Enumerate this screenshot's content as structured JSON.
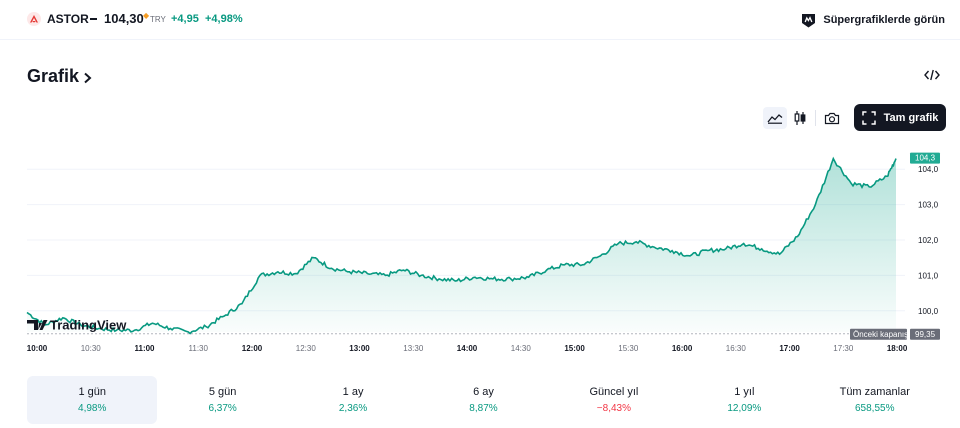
{
  "header": {
    "symbol": "ASTOR",
    "price": "104,30",
    "currency": "TRY",
    "change": "+4,95",
    "change_percent": "+4,98%",
    "supercharts_label": "Süpergrafiklerde görün"
  },
  "section": {
    "title": "Grafik"
  },
  "toolbar": {
    "full_chart_label": "Tam grafik",
    "chart_style_selected": "area"
  },
  "chart_data": {
    "type": "area",
    "x_ticks": [
      "10:00",
      "10:30",
      "11:00",
      "11:30",
      "12:00",
      "12:30",
      "13:00",
      "13:30",
      "14:00",
      "14:30",
      "15:00",
      "15:30",
      "16:00",
      "16:30",
      "17:00",
      "17:30",
      "18:00"
    ],
    "y_ticks": [
      "100,0",
      "101,0",
      "102,0",
      "103,0",
      "104,0"
    ],
    "ylim": [
      99.4,
      104.6
    ],
    "series": [
      {
        "x": [
          "10:00",
          "10:10",
          "10:20",
          "10:30",
          "10:40",
          "10:50",
          "11:00",
          "11:10",
          "11:20",
          "11:30",
          "11:40",
          "11:50",
          "12:00",
          "12:10",
          "12:20",
          "12:30",
          "12:40",
          "12:50",
          "13:00",
          "13:10",
          "13:20",
          "13:30",
          "13:40",
          "13:50",
          "14:00",
          "14:10",
          "14:20",
          "14:30",
          "14:40",
          "14:50",
          "15:00",
          "15:10",
          "15:20",
          "15:30",
          "15:40",
          "15:50",
          "16:00",
          "16:10",
          "16:20",
          "16:30",
          "16:40",
          "16:50",
          "17:00",
          "17:10",
          "17:20",
          "17:30",
          "17:40",
          "17:50",
          "18:00",
          "18:05"
        ],
        "y": [
          99.95,
          99.6,
          99.8,
          99.6,
          99.5,
          99.45,
          99.45,
          99.65,
          99.5,
          99.4,
          99.55,
          99.85,
          100.2,
          101.0,
          101.1,
          101.05,
          101.5,
          101.2,
          101.1,
          101.05,
          101.0,
          101.15,
          101.0,
          100.9,
          100.85,
          100.95,
          100.9,
          100.9,
          100.95,
          101.15,
          101.3,
          101.3,
          101.55,
          101.9,
          101.95,
          101.8,
          101.7,
          101.55,
          101.7,
          101.75,
          101.9,
          101.75,
          101.6,
          102.1,
          103.0,
          104.3,
          103.6,
          103.5,
          103.8,
          104.3
        ]
      }
    ],
    "previous_close": 99.35,
    "previous_close_label": "Önceki kapanış",
    "previous_close_value": "99,35",
    "last_value_label": "104,3",
    "watermark": "TradingView"
  },
  "ranges": [
    {
      "label": "1 gün",
      "value": "4,98%",
      "trend": "pos"
    },
    {
      "label": "5 gün",
      "value": "6,37%",
      "trend": "pos"
    },
    {
      "label": "1 ay",
      "value": "2,36%",
      "trend": "pos"
    },
    {
      "label": "6 ay",
      "value": "8,87%",
      "trend": "pos"
    },
    {
      "label": "Güncel yıl",
      "value": "−8,43%",
      "trend": "neg"
    },
    {
      "label": "1 yıl",
      "value": "12,09%",
      "trend": "pos"
    },
    {
      "label": "Tüm zamanlar",
      "value": "658,55%",
      "trend": "pos"
    }
  ],
  "colors": {
    "accent": "#089981",
    "negative": "#f23645",
    "text": "#131722",
    "muted": "#6a6d78",
    "last_value_badge": "#22ab94"
  },
  "icons": {
    "logo": "astor-logo-icon",
    "supercharts": "supercharts-icon",
    "title_chevron": "chevron-right-icon",
    "embed": "embed-code-icon",
    "area_style": "area-chart-icon",
    "candle_style": "candlestick-icon",
    "snapshot": "camera-icon",
    "full_chart": "fullscreen-icon"
  }
}
